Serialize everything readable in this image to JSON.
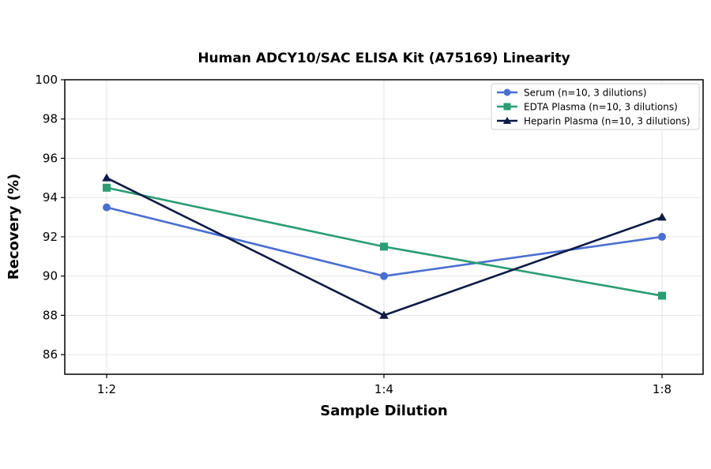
{
  "chart_data": {
    "type": "line",
    "title": "Human ADCY10/SAC ELISA Kit (A75169) Linearity",
    "xlabel": "Sample Dilution",
    "ylabel": "Recovery (%)",
    "categories": [
      "1:2",
      "1:4",
      "1:8"
    ],
    "ylim": [
      85,
      100
    ],
    "yticks": [
      86,
      88,
      90,
      92,
      94,
      96,
      98,
      100
    ],
    "grid": true,
    "legend_position": "top-right",
    "series": [
      {
        "name": "Serum (n=10, 3 dilutions)",
        "values": [
          93.5,
          90.0,
          92.0
        ],
        "color": "#4a6fd1",
        "marker": "circle"
      },
      {
        "name": "EDTA Plasma (n=10, 3 dilutions)",
        "values": [
          94.5,
          91.5,
          89.0
        ],
        "color": "#2a9d72",
        "marker": "square"
      },
      {
        "name": "Heparin Plasma (n=10, 3 dilutions)",
        "values": [
          95.0,
          88.0,
          93.0
        ],
        "color": "#0d1a45",
        "marker": "triangle"
      }
    ]
  }
}
